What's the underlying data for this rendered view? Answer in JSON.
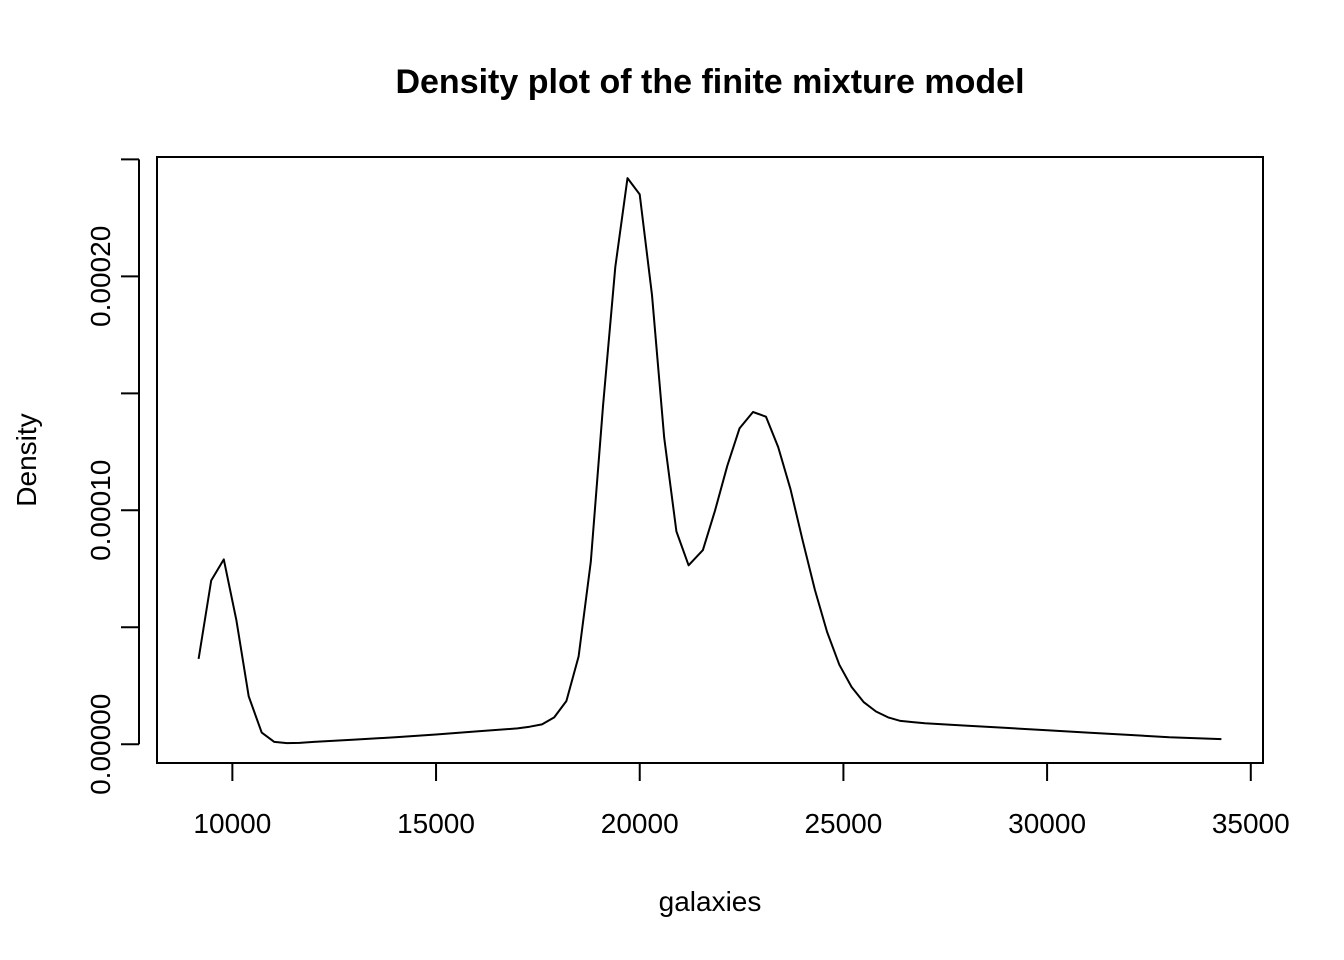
{
  "chart_data": {
    "type": "line",
    "title": "Density plot of the finite mixture model",
    "xlabel": "galaxies",
    "ylabel": "Density",
    "xlim": [
      8150,
      35300
    ],
    "ylim": [
      -8e-06,
      0.000251
    ],
    "x_ticks": [
      10000,
      15000,
      20000,
      25000,
      30000,
      35000
    ],
    "x_tick_labels": [
      "10000",
      "15000",
      "20000",
      "25000",
      "30000",
      "35000"
    ],
    "y_ticks": [
      0,
      5e-05,
      0.0001,
      0.00015,
      0.0002,
      0.00025
    ],
    "y_tick_labels": [
      "0.00000",
      "",
      "0.00010",
      "",
      "0.00020",
      ""
    ],
    "grid": false,
    "legend": "none",
    "series": [
      {
        "color": "#000000",
        "x": [
          9172,
          9480,
          9790,
          10100,
          10400,
          10720,
          11030,
          11340,
          11650,
          12000,
          13000,
          14000,
          15000,
          16000,
          17000,
          17300,
          17600,
          17900,
          18200,
          18500,
          18800,
          19100,
          19400,
          19700,
          20000,
          20300,
          20600,
          20900,
          21200,
          21550,
          21850,
          22150,
          22450,
          22780,
          23100,
          23400,
          23700,
          24000,
          24300,
          24600,
          24900,
          25200,
          25500,
          25800,
          26100,
          26400,
          26700,
          27000,
          28000,
          29000,
          30000,
          31000,
          32000,
          33000,
          34279
        ],
        "y": [
          3.65e-05,
          7e-05,
          7.9e-05,
          5.3e-05,
          2.05e-05,
          5e-06,
          1e-06,
          5e-07,
          6e-07,
          1e-06,
          2e-06,
          3e-06,
          4.2e-06,
          5.5e-06,
          6.8e-06,
          7.5e-06,
          8.5e-06,
          1.15e-05,
          1.85e-05,
          3.75e-05,
          7.8e-05,
          0.000145,
          0.000204,
          0.000242,
          0.000235,
          0.000192,
          0.000131,
          9.1e-05,
          7.65e-05,
          8.3e-05,
          0.0001,
          0.000119,
          0.000135,
          0.000142,
          0.00014,
          0.000127,
          0.000109,
          8.7e-05,
          6.6e-05,
          4.8e-05,
          3.4e-05,
          2.45e-05,
          1.8e-05,
          1.4e-05,
          1.15e-05,
          1e-05,
          9.5e-06,
          9e-06,
          8e-06,
          7e-06,
          6e-06,
          5e-06,
          4e-06,
          3e-06,
          2.2e-06
        ]
      }
    ]
  }
}
